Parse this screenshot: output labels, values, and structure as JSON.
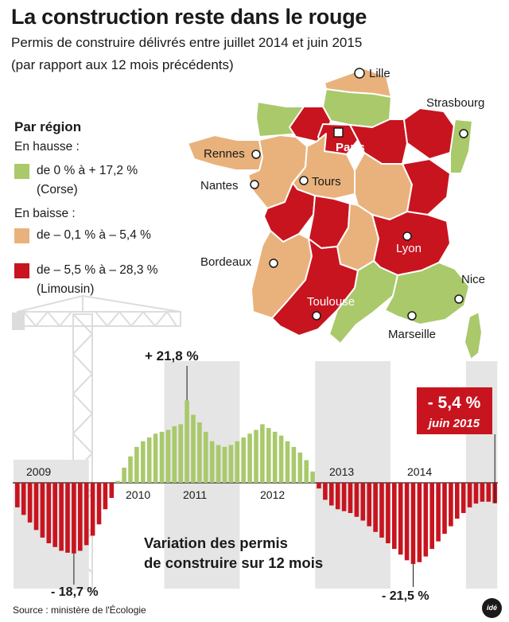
{
  "header": {
    "title": "La construction reste dans le rouge",
    "subtitle1": "Permis de construire délivrés entre juillet 2014 et juin 2015",
    "subtitle2": "(par rapport aux 12 mois précédents)"
  },
  "legend": {
    "title": "Par région",
    "up_label": "En hausse :",
    "up_range": "de 0 % à + 17,2 %",
    "up_note": "(Corse)",
    "down_label": "En baisse :",
    "down_range1": "de – 0,1 % à – 5,4 %",
    "down_range2": "de – 5,5 % à – 28,3 %",
    "down_note": "(Limousin)"
  },
  "colors": {
    "green": "#a9c96b",
    "orange": "#e9b27c",
    "red": "#c8141f",
    "gray": "#e5e5e5",
    "crane": "#dcdcdc"
  },
  "map": {
    "cities": {
      "lille": "Lille",
      "strasbourg": "Strasbourg",
      "paris": "Paris",
      "rennes": "Rennes",
      "nantes": "Nantes",
      "tours": "Tours",
      "lyon": "Lyon",
      "bordeaux": "Bordeaux",
      "nice": "Nice",
      "toulouse": "Toulouse",
      "marseille": "Marseille"
    }
  },
  "chart_data": {
    "type": "bar",
    "title": "Variation des permis de construire sur 12 mois",
    "year_labels": [
      "2009",
      "2010",
      "2011",
      "2012",
      "2013",
      "2014"
    ],
    "period": "2009 – juin 2015 (monthly, 12-month rolling variation, %)",
    "values": [
      -6.5,
      -8.5,
      -10.5,
      -12.5,
      -14.5,
      -16,
      -17,
      -18,
      -18.5,
      -18.7,
      -18,
      -16.5,
      -14,
      -11,
      -7,
      -4,
      0.5,
      4,
      7,
      9.5,
      11,
      12,
      13,
      13.5,
      14,
      15,
      15.5,
      21.8,
      18,
      16,
      13.5,
      11,
      10,
      9.5,
      10,
      11,
      12,
      13,
      14,
      15.5,
      14.5,
      13.5,
      12.5,
      11,
      9.5,
      8,
      6,
      3,
      -1.5,
      -4.5,
      -6,
      -7,
      -7.5,
      -8,
      -9,
      -10,
      -11.5,
      -13,
      -14.5,
      -16,
      -17.5,
      -19,
      -20.5,
      -21.5,
      -21,
      -19.5,
      -17.5,
      -15.5,
      -13.5,
      -11.5,
      -9.5,
      -8,
      -6.5,
      -5.5,
      -5,
      -5,
      -5.4
    ],
    "annotations": {
      "max": "+ 21,8 %",
      "min_2009": "- 18,7 %",
      "min_2014": "- 21,5 %",
      "last_value": "- 5,4 %",
      "last_date": "juin 2015"
    }
  },
  "source": "Source : ministère de l'Écologie",
  "logo": "idé"
}
